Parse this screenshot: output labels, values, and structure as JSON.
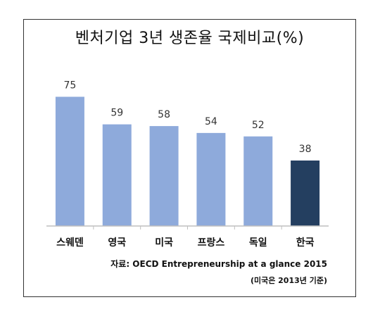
{
  "chart_data": {
    "type": "bar",
    "title": "벤처기업 3년 생존율 국제비교(%)",
    "categories": [
      "스웨덴",
      "영국",
      "미국",
      "프랑스",
      "독일",
      "한국"
    ],
    "values": [
      75,
      59,
      58,
      54,
      52,
      38
    ],
    "highlight_index": 5,
    "colors": {
      "bar": "#8eaadb",
      "highlight": "#243f60",
      "axis": "#bfbfbf"
    },
    "ylim": [
      0,
      85
    ],
    "grid": false,
    "legend": "none"
  },
  "source": "자료: OECD Entrepreneurship at a glance 2015",
  "note": "(미국은 2013년 기준)"
}
